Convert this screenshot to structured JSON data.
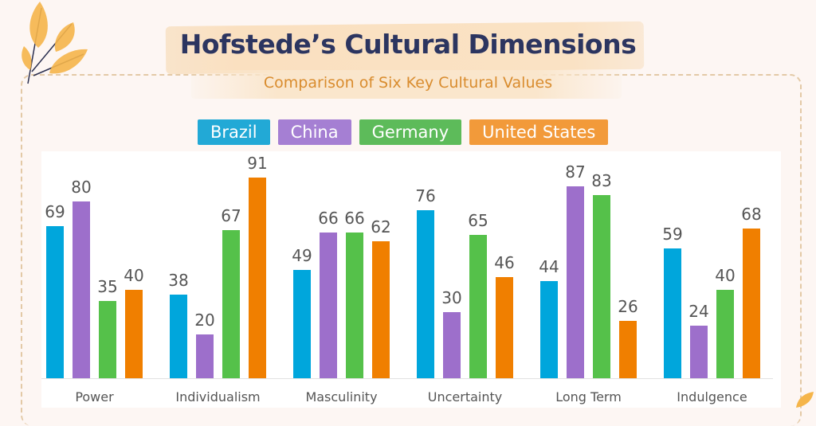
{
  "header": {
    "title": "Hofstede’s Cultural Dimensions",
    "subtitle": "Comparison of Six Key Cultural Values"
  },
  "legend": [
    {
      "label": "Brazil",
      "color": "#00a6dc"
    },
    {
      "label": "China",
      "color": "#9d6fcb"
    },
    {
      "label": "Germany",
      "color": "#55c14a"
    },
    {
      "label": "United States",
      "color": "#f07f00"
    }
  ],
  "chart_data": {
    "type": "bar",
    "title": "Hofstede’s Cultural Dimensions",
    "subtitle": "Comparison of Six Key Cultural Values",
    "xlabel": "",
    "ylabel": "",
    "ylim": [
      0,
      100
    ],
    "grid": false,
    "legend_position": "top",
    "categories": [
      "Power",
      "Individualism",
      "Masculinity",
      "Uncertainty",
      "Long Term",
      "Indulgence"
    ],
    "series": [
      {
        "name": "Brazil",
        "color": "#00a6dc",
        "values": [
          69,
          38,
          49,
          76,
          44,
          59
        ]
      },
      {
        "name": "China",
        "color": "#9d6fcb",
        "values": [
          80,
          20,
          66,
          30,
          87,
          24
        ]
      },
      {
        "name": "Germany",
        "color": "#55c14a",
        "values": [
          35,
          67,
          66,
          65,
          83,
          40
        ]
      },
      {
        "name": "United States",
        "color": "#f07f00",
        "values": [
          40,
          91,
          62,
          46,
          26,
          68
        ]
      }
    ]
  }
}
